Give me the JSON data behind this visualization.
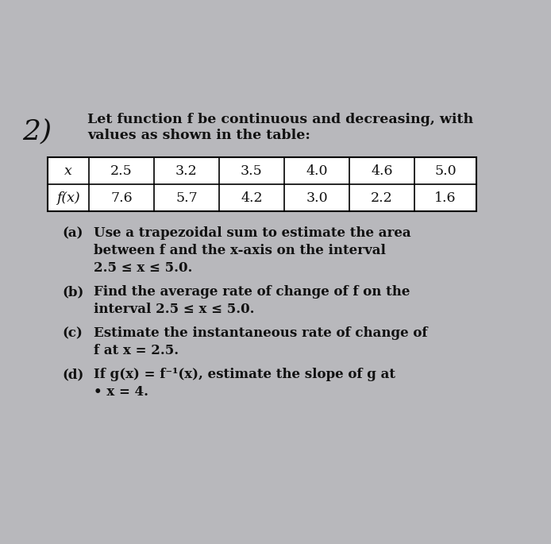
{
  "background_color": "#b8b8bc",
  "problem_number": "2)",
  "intro_line1": "Let function f be continuous and decreasing, with",
  "intro_line2": "values as shown in the table:",
  "table": {
    "headers": [
      "x",
      "2.5",
      "3.2",
      "3.5",
      "4.0",
      "4.6",
      "5.0"
    ],
    "row2_label": "f(x)",
    "row2_values": [
      "7.6",
      "5.7",
      "4.2",
      "3.0",
      "2.2",
      "1.6"
    ]
  },
  "parts": [
    {
      "label": "(a)",
      "indent_lines": [
        "Use a trapezoidal sum to estimate the area",
        "between f and the x-axis on the interval",
        "2.5 ≤ x ≤ 5.0."
      ]
    },
    {
      "label": "(b)",
      "indent_lines": [
        "Find the average rate of change of f on the",
        "interval 2.5 ≤ x ≤ 5.0."
      ]
    },
    {
      "label": "(c)",
      "indent_lines": [
        "Estimate the instantaneous rate of change of",
        "f at x = 2.5."
      ]
    },
    {
      "label": "(d)",
      "indent_lines": [
        "If g(x) = f⁻¹(x), estimate the slope of g at",
        "• x = 4."
      ]
    }
  ],
  "font_size_number": 26,
  "font_size_intro": 12.5,
  "font_size_table": 12.5,
  "font_size_parts": 12.0,
  "text_color": "#111111",
  "table_bg": "#ffffff"
}
